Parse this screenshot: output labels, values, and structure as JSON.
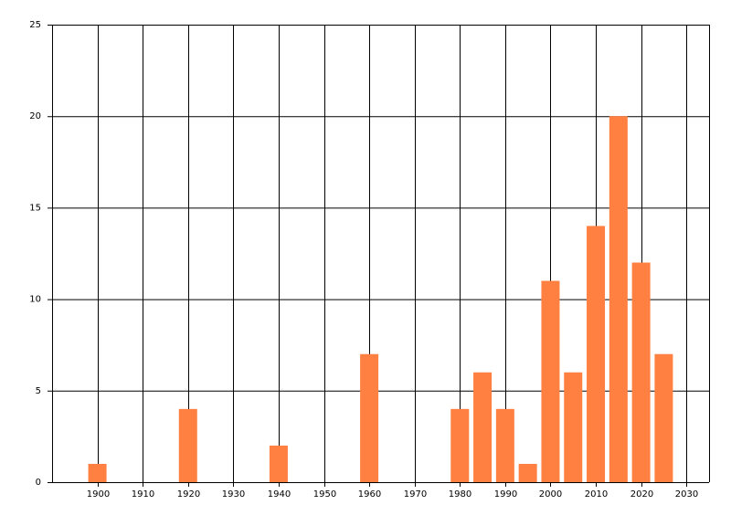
{
  "chart_data": {
    "type": "bar",
    "x": [
      1900,
      1920,
      1940,
      1960,
      1980,
      1985,
      1990,
      1995,
      2000,
      2005,
      2010,
      2015,
      2020,
      2025
    ],
    "values": [
      1,
      4,
      2,
      7,
      4,
      6,
      4,
      1,
      11,
      6,
      14,
      20,
      12,
      7
    ],
    "color": "#ff8040",
    "xlim": [
      1890,
      2035
    ],
    "xticks": [
      1900,
      1910,
      1920,
      1930,
      1940,
      1950,
      1960,
      1970,
      1980,
      1990,
      2000,
      2010,
      2020,
      2030
    ],
    "ylim": [
      0,
      25
    ],
    "yticks": [
      0,
      5,
      10,
      15,
      20,
      25
    ],
    "grid": true
  }
}
